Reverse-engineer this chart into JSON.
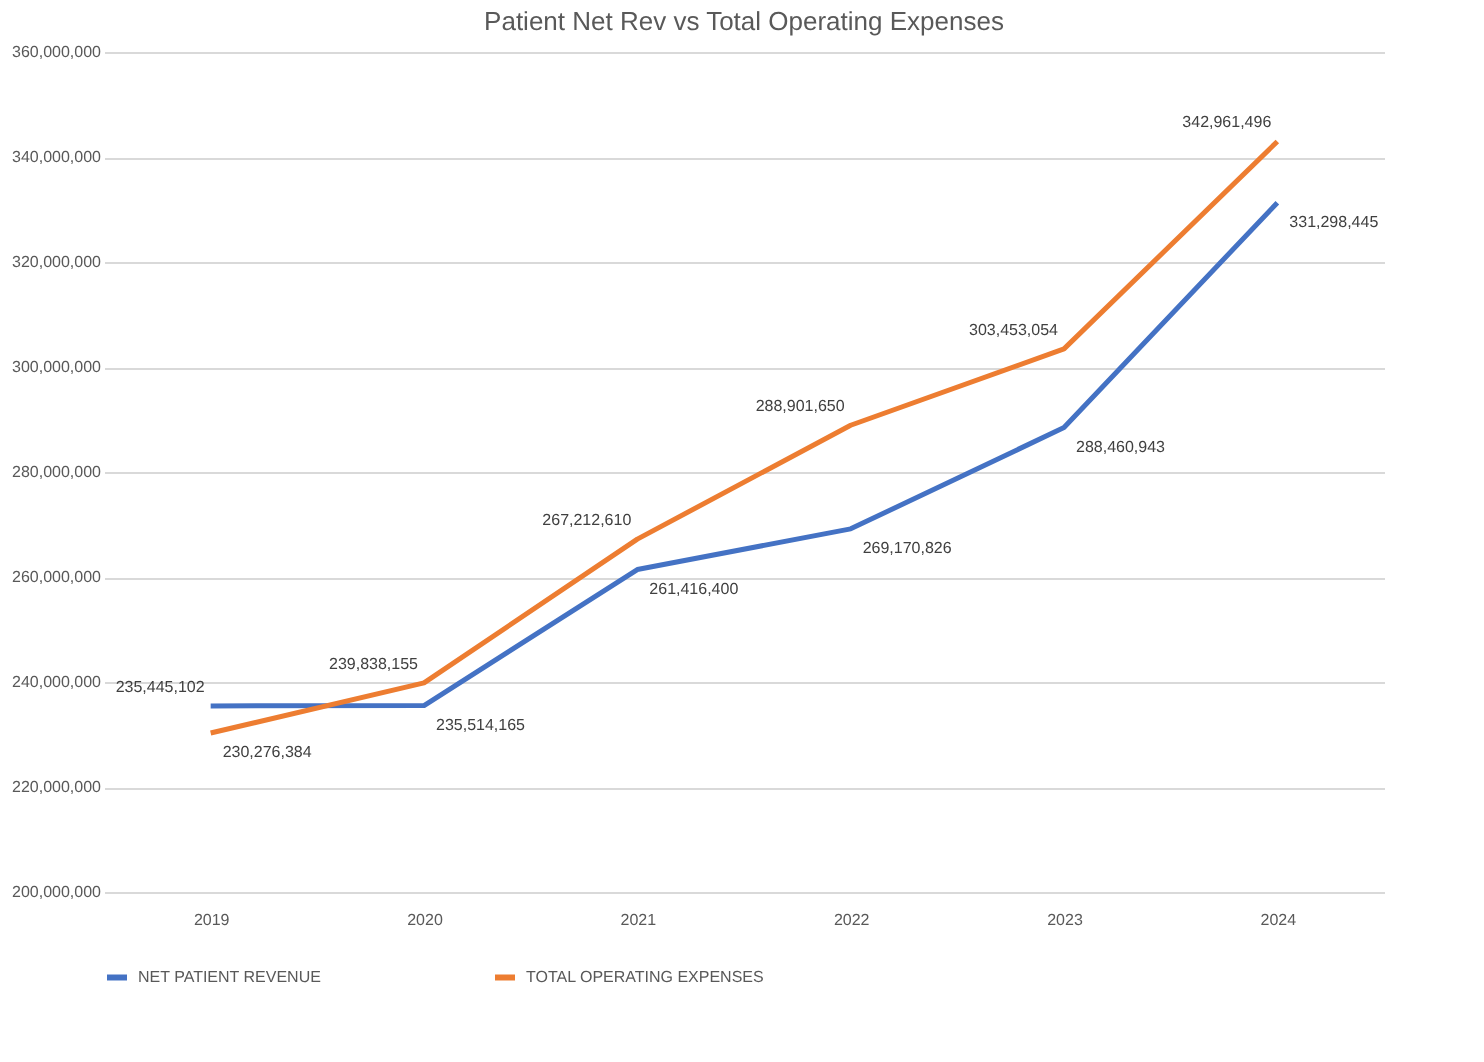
{
  "chart_data": {
    "type": "line",
    "title": "Patient Net Rev vs Total Operating Expenses",
    "categories": [
      "2019",
      "2020",
      "2021",
      "2022",
      "2023",
      "2024"
    ],
    "series": [
      {
        "name": "NET PATIENT REVENUE",
        "color": "#4472c4",
        "values": [
          235445102,
          235514165,
          261416400,
          269170826,
          288460943,
          331298445
        ],
        "value_labels": [
          "235,445,102",
          "235,514,165",
          "261,416,400",
          "269,170,826",
          "288,460,943",
          "331,298,445"
        ]
      },
      {
        "name": "TOTAL OPERATING EXPENSES",
        "color": "#ed7d31",
        "values": [
          230276384,
          239838155,
          267212610,
          288901650,
          303453054,
          342961496
        ],
        "value_labels": [
          "230,276,384",
          "239,838,155",
          "267,212,610",
          "288,901,650",
          "303,453,054",
          "342,961,496"
        ]
      }
    ],
    "ylim": [
      200000000,
      360000000
    ],
    "yticks": [
      {
        "value": 200000000,
        "label": "200,000,000"
      },
      {
        "value": 220000000,
        "label": "220,000,000"
      },
      {
        "value": 240000000,
        "label": "240,000,000"
      },
      {
        "value": 260000000,
        "label": "260,000,000"
      },
      {
        "value": 280000000,
        "label": "280,000,000"
      },
      {
        "value": 300000000,
        "label": "300,000,000"
      },
      {
        "value": 320000000,
        "label": "320,000,000"
      },
      {
        "value": 340000000,
        "label": "340,000,000"
      },
      {
        "value": 360000000,
        "label": "360,000,000"
      }
    ],
    "grid": "y",
    "legend": "bottom",
    "marker": "none",
    "line_style": "solid"
  }
}
